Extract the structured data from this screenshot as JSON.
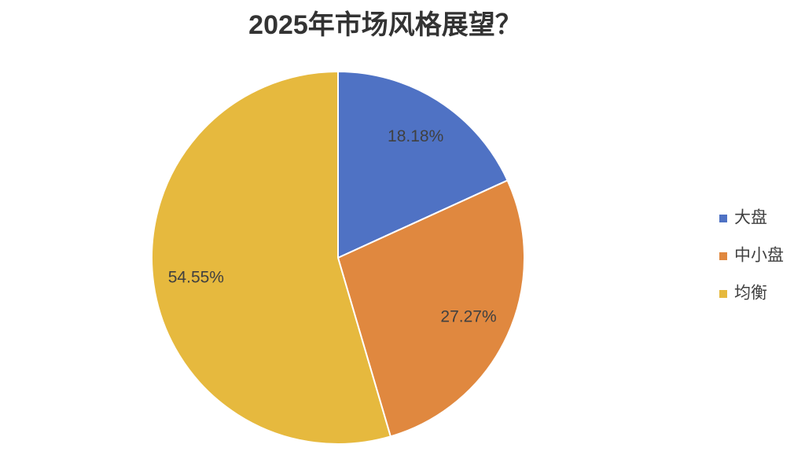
{
  "chart_data": {
    "type": "pie",
    "title": "2025年市场风格展望？",
    "categories": [
      "大盘",
      "中小盘",
      "均衡"
    ],
    "values": [
      18.18,
      27.27,
      54.55
    ],
    "value_labels": [
      "18.18%",
      "27.27%",
      "54.55%"
    ],
    "colors": [
      "#4f72c4",
      "#e0883f",
      "#e6b93e"
    ],
    "legend": "right"
  }
}
